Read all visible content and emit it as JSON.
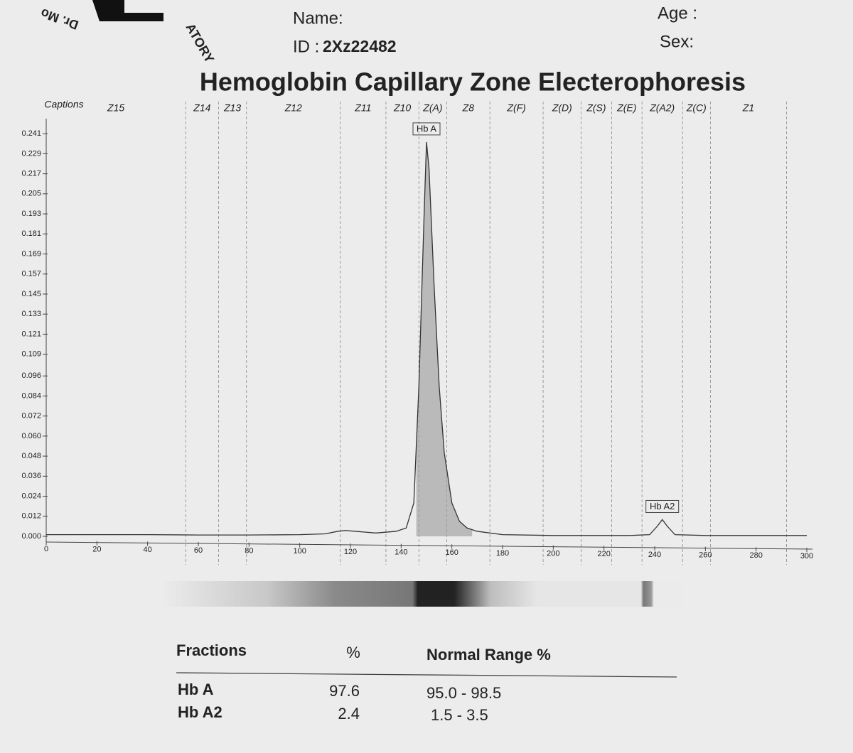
{
  "header": {
    "logo": [
      "Dr. Mo",
      "ATORY"
    ],
    "name_label": "Name:",
    "id_label": "ID :",
    "id": "2Xz22482",
    "age_label": "Age :",
    "sex_label": "Sex:"
  },
  "chart_data": {
    "type": "line",
    "title": "Hemoglobin Capillary Zone Electerophoresis",
    "caption_label": "Captions",
    "zone_labels": [
      "Z15",
      "Z14",
      "Z13",
      "Z12",
      "Z11",
      "Z10",
      "Z(A)",
      "Z8",
      "Z(F)",
      "Z(D)",
      "Z(S)",
      "Z(E)",
      "Z(A2)",
      "Z(C)",
      "Z1"
    ],
    "zone_edges": [
      55,
      68,
      79,
      116,
      134,
      147,
      158,
      175,
      196,
      211,
      223,
      235,
      251,
      262,
      292
    ],
    "x": [
      0,
      20,
      40,
      60,
      80,
      100,
      110,
      115,
      118,
      122,
      130,
      138,
      142,
      145,
      147,
      149,
      150,
      151,
      153,
      155,
      157,
      160,
      163,
      166,
      170,
      180,
      200,
      230,
      238,
      241,
      243,
      245,
      248,
      260,
      280,
      300
    ],
    "series": [
      {
        "name": "Hb",
        "color": "#333333",
        "values": [
          0.001,
          0.001,
          0.001,
          0.0008,
          0.0008,
          0.001,
          0.0015,
          0.003,
          0.0035,
          0.003,
          0.002,
          0.003,
          0.005,
          0.02,
          0.09,
          0.19,
          0.236,
          0.22,
          0.15,
          0.09,
          0.05,
          0.02,
          0.009,
          0.005,
          0.003,
          0.001,
          0.0005,
          0.0005,
          0.001,
          0.006,
          0.01,
          0.006,
          0.001,
          0.0005,
          0.0005,
          0.0005
        ]
      }
    ],
    "fill_range": [
      146,
      168
    ],
    "fill_color": "#9a9a9a",
    "annotations": [
      {
        "text": "Hb A",
        "x": 150
      },
      {
        "text": "Hb A2",
        "x": 243
      }
    ],
    "xlim": [
      0,
      300
    ],
    "xticks": [
      0,
      20,
      40,
      60,
      80,
      100,
      120,
      140,
      160,
      180,
      200,
      220,
      240,
      260,
      280,
      300
    ],
    "ylim": [
      0,
      0.25
    ],
    "yticks": [
      {
        "value": 0,
        "label": "0.000"
      },
      0.012,
      0.024,
      0.036,
      0.048,
      {
        "value": 0.06,
        "label": "0.060"
      },
      0.072,
      0.084,
      0.096,
      0.109,
      0.121,
      0.133,
      0.145,
      0.157,
      0.169,
      0.181,
      0.193,
      0.205,
      0.217,
      0.229,
      0.241
    ]
  },
  "table": {
    "header": [
      "Fractions",
      "%",
      "Normal Range %"
    ],
    "rows": [
      [
        "Hb A",
        "97.6",
        "95.0 - 98.5"
      ],
      [
        "Hb A2",
        "2.4",
        "1.5 - 3.5"
      ]
    ]
  }
}
